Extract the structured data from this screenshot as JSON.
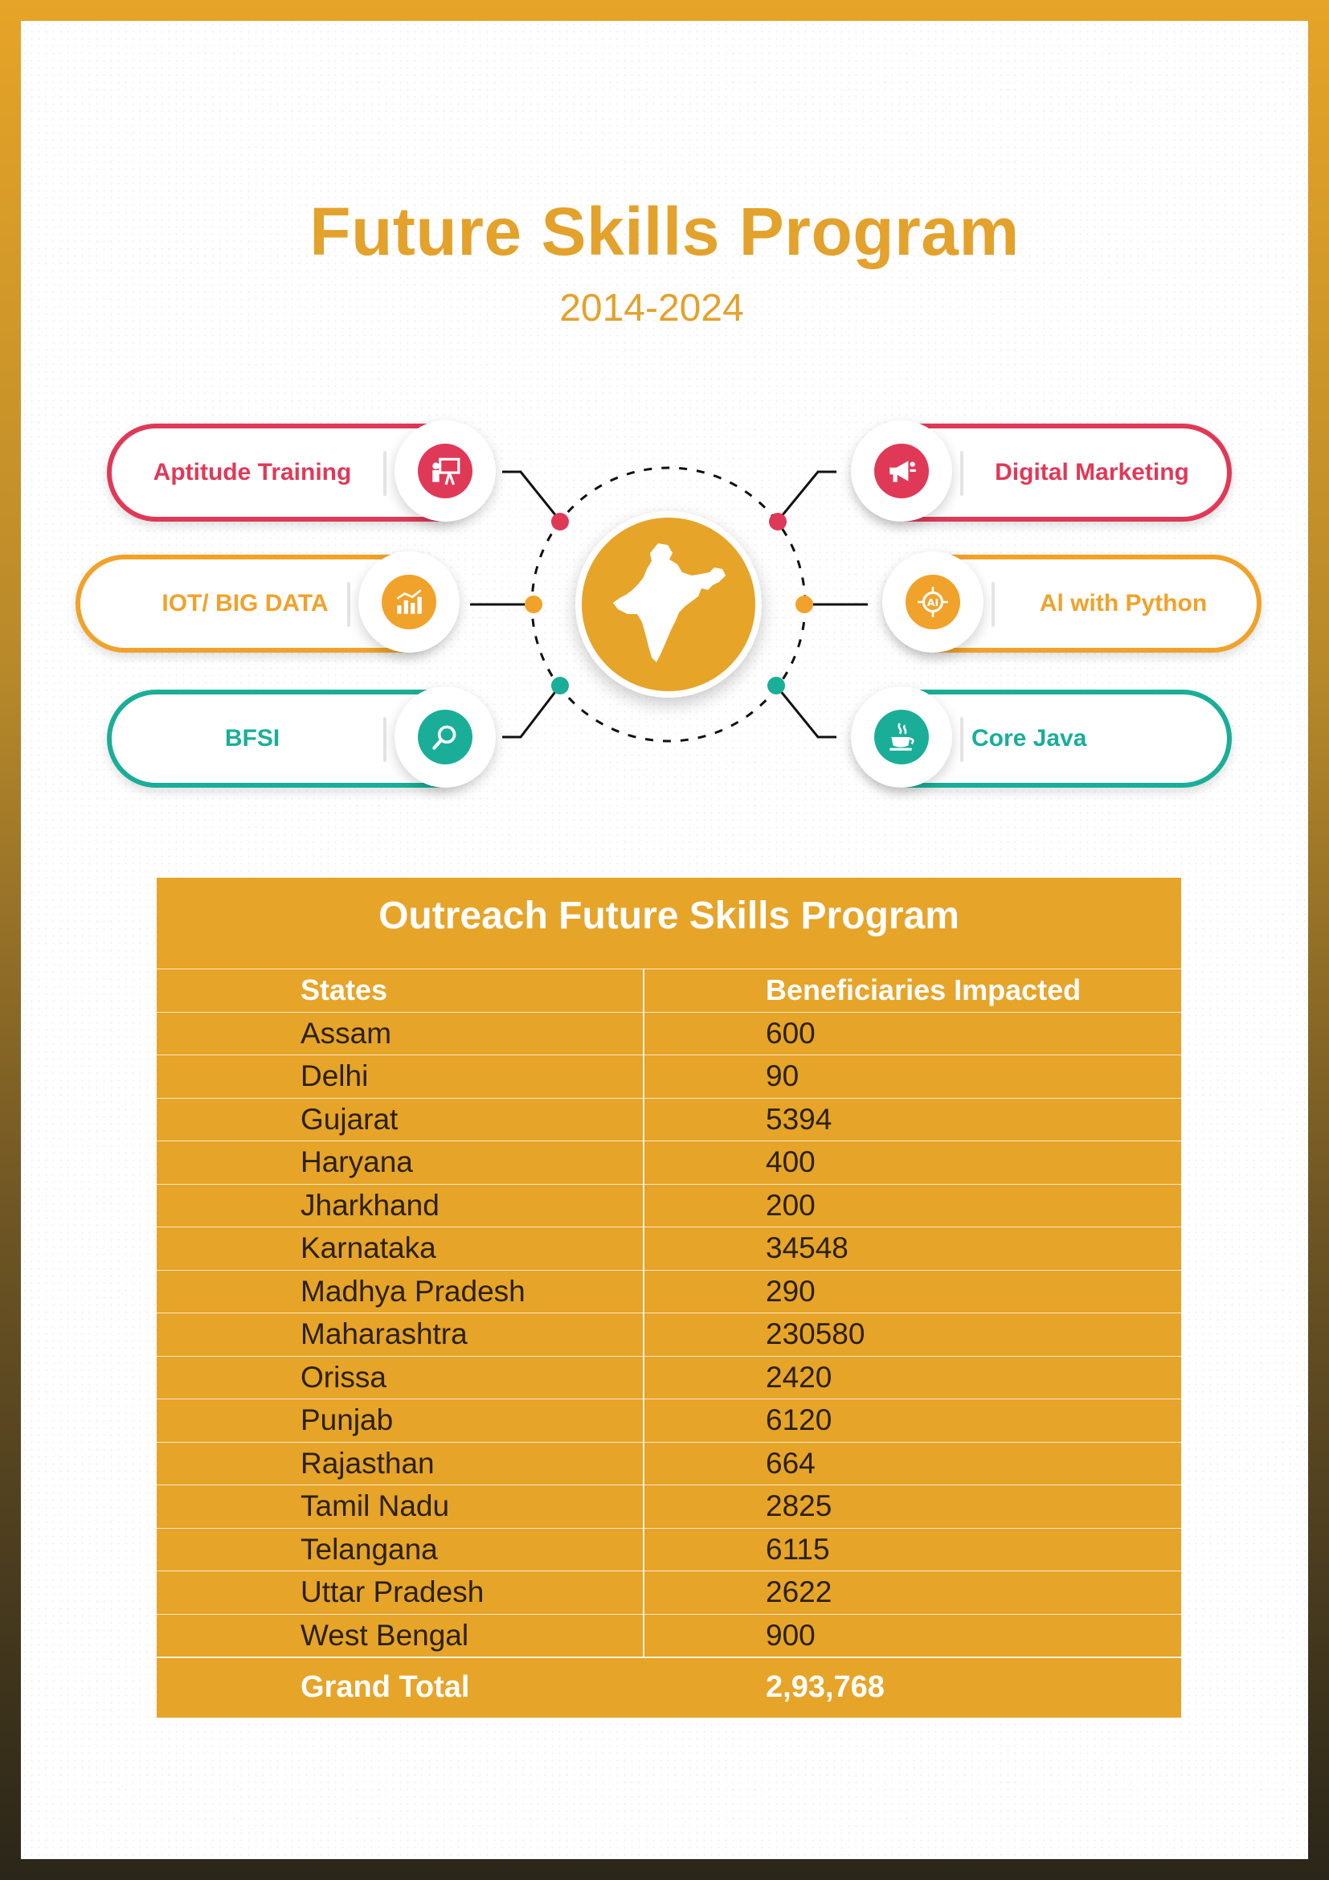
{
  "header": {
    "title": "Future Skills Program",
    "subtitle": "2014-2024"
  },
  "programs": [
    {
      "label": "Aptitude Training",
      "icon": "presentation-icon",
      "color": "#e03958"
    },
    {
      "label": "IOT/ BIG DATA",
      "icon": "analytics-chart-icon",
      "color": "#f0a22a"
    },
    {
      "label": "BFSI",
      "icon": "search-icon",
      "color": "#1aae98"
    },
    {
      "label": "Digital Marketing",
      "icon": "megaphone-icon",
      "color": "#e03958"
    },
    {
      "label": "Al with Python",
      "icon": "ai-chip-icon",
      "color": "#f0a22a"
    },
    {
      "label": "Core Java",
      "icon": "java-cup-icon",
      "color": "#1aae98"
    }
  ],
  "center": {
    "icon": "india-map-icon",
    "color": "#e6a428"
  },
  "table": {
    "title": "Outreach Future Skills Program",
    "headers": [
      "States",
      "Beneficiaries Impacted"
    ],
    "rows": [
      {
        "state": "Assam",
        "value": "600"
      },
      {
        "state": "Delhi",
        "value": "90"
      },
      {
        "state": "Gujarat",
        "value": "5394"
      },
      {
        "state": "Haryana",
        "value": "400"
      },
      {
        "state": "Jharkhand",
        "value": "200"
      },
      {
        "state": "Karnataka",
        "value": "34548"
      },
      {
        "state": "Madhya Pradesh",
        "value": "290"
      },
      {
        "state": "Maharashtra",
        "value": "230580"
      },
      {
        "state": "Orissa",
        "value": "2420"
      },
      {
        "state": "Punjab",
        "value": "6120"
      },
      {
        "state": "Rajasthan",
        "value": "664"
      },
      {
        "state": "Tamil Nadu",
        "value": "2825"
      },
      {
        "state": "Telangana",
        "value": "6115"
      },
      {
        "state": "Uttar Pradesh",
        "value": "2622"
      },
      {
        "state": "West Bengal",
        "value": "900"
      }
    ],
    "total_label": "Grand Total",
    "total_value": "2,93,768"
  },
  "colors": {
    "accent": "#e6a428",
    "red": "#e03958",
    "orange": "#f0a22a",
    "teal": "#1aae98"
  }
}
